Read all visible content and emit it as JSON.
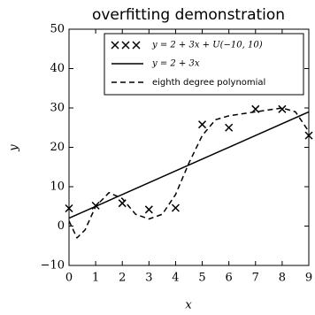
{
  "chart_data": {
    "type": "line",
    "title": "overfitting demonstration",
    "x_label": "x",
    "y_label": "y",
    "xlim": [
      0,
      9
    ],
    "ylim": [
      -10,
      50
    ],
    "xticks": [
      0,
      1,
      2,
      3,
      4,
      5,
      6,
      7,
      8,
      9
    ],
    "yticks": [
      {
        "value": -10,
        "label": "−10"
      },
      0,
      10,
      20,
      30,
      40,
      50
    ],
    "legend": "upper right",
    "series": [
      {
        "name": "y = 2 + 3x + U(−10, 10)",
        "color": "#000000",
        "style": "marker",
        "x": [
          0,
          1,
          2,
          3,
          4,
          5,
          6,
          7,
          8,
          9
        ],
        "values": [
          4.5,
          5.2,
          5.8,
          4.2,
          4.6,
          25.8,
          25,
          29.7,
          29.7,
          23
        ]
      },
      {
        "name": "y = 2 + 3x",
        "color": "#000000",
        "style": "solid",
        "x": [
          0,
          9
        ],
        "values": [
          2,
          29
        ]
      },
      {
        "name": "eighth degree polynomial",
        "color": "#000000",
        "style": "dashed",
        "x": [
          0,
          0.3,
          0.6,
          1,
          1.5,
          2,
          2.5,
          3,
          3.5,
          4,
          4.5,
          5,
          5.5,
          6,
          7,
          8,
          8.5,
          9
        ],
        "values": [
          1.3,
          -3,
          -1,
          5,
          8.5,
          7,
          3,
          1.8,
          3,
          8,
          16,
          23,
          27,
          28,
          29,
          30,
          29,
          24
        ]
      }
    ]
  }
}
